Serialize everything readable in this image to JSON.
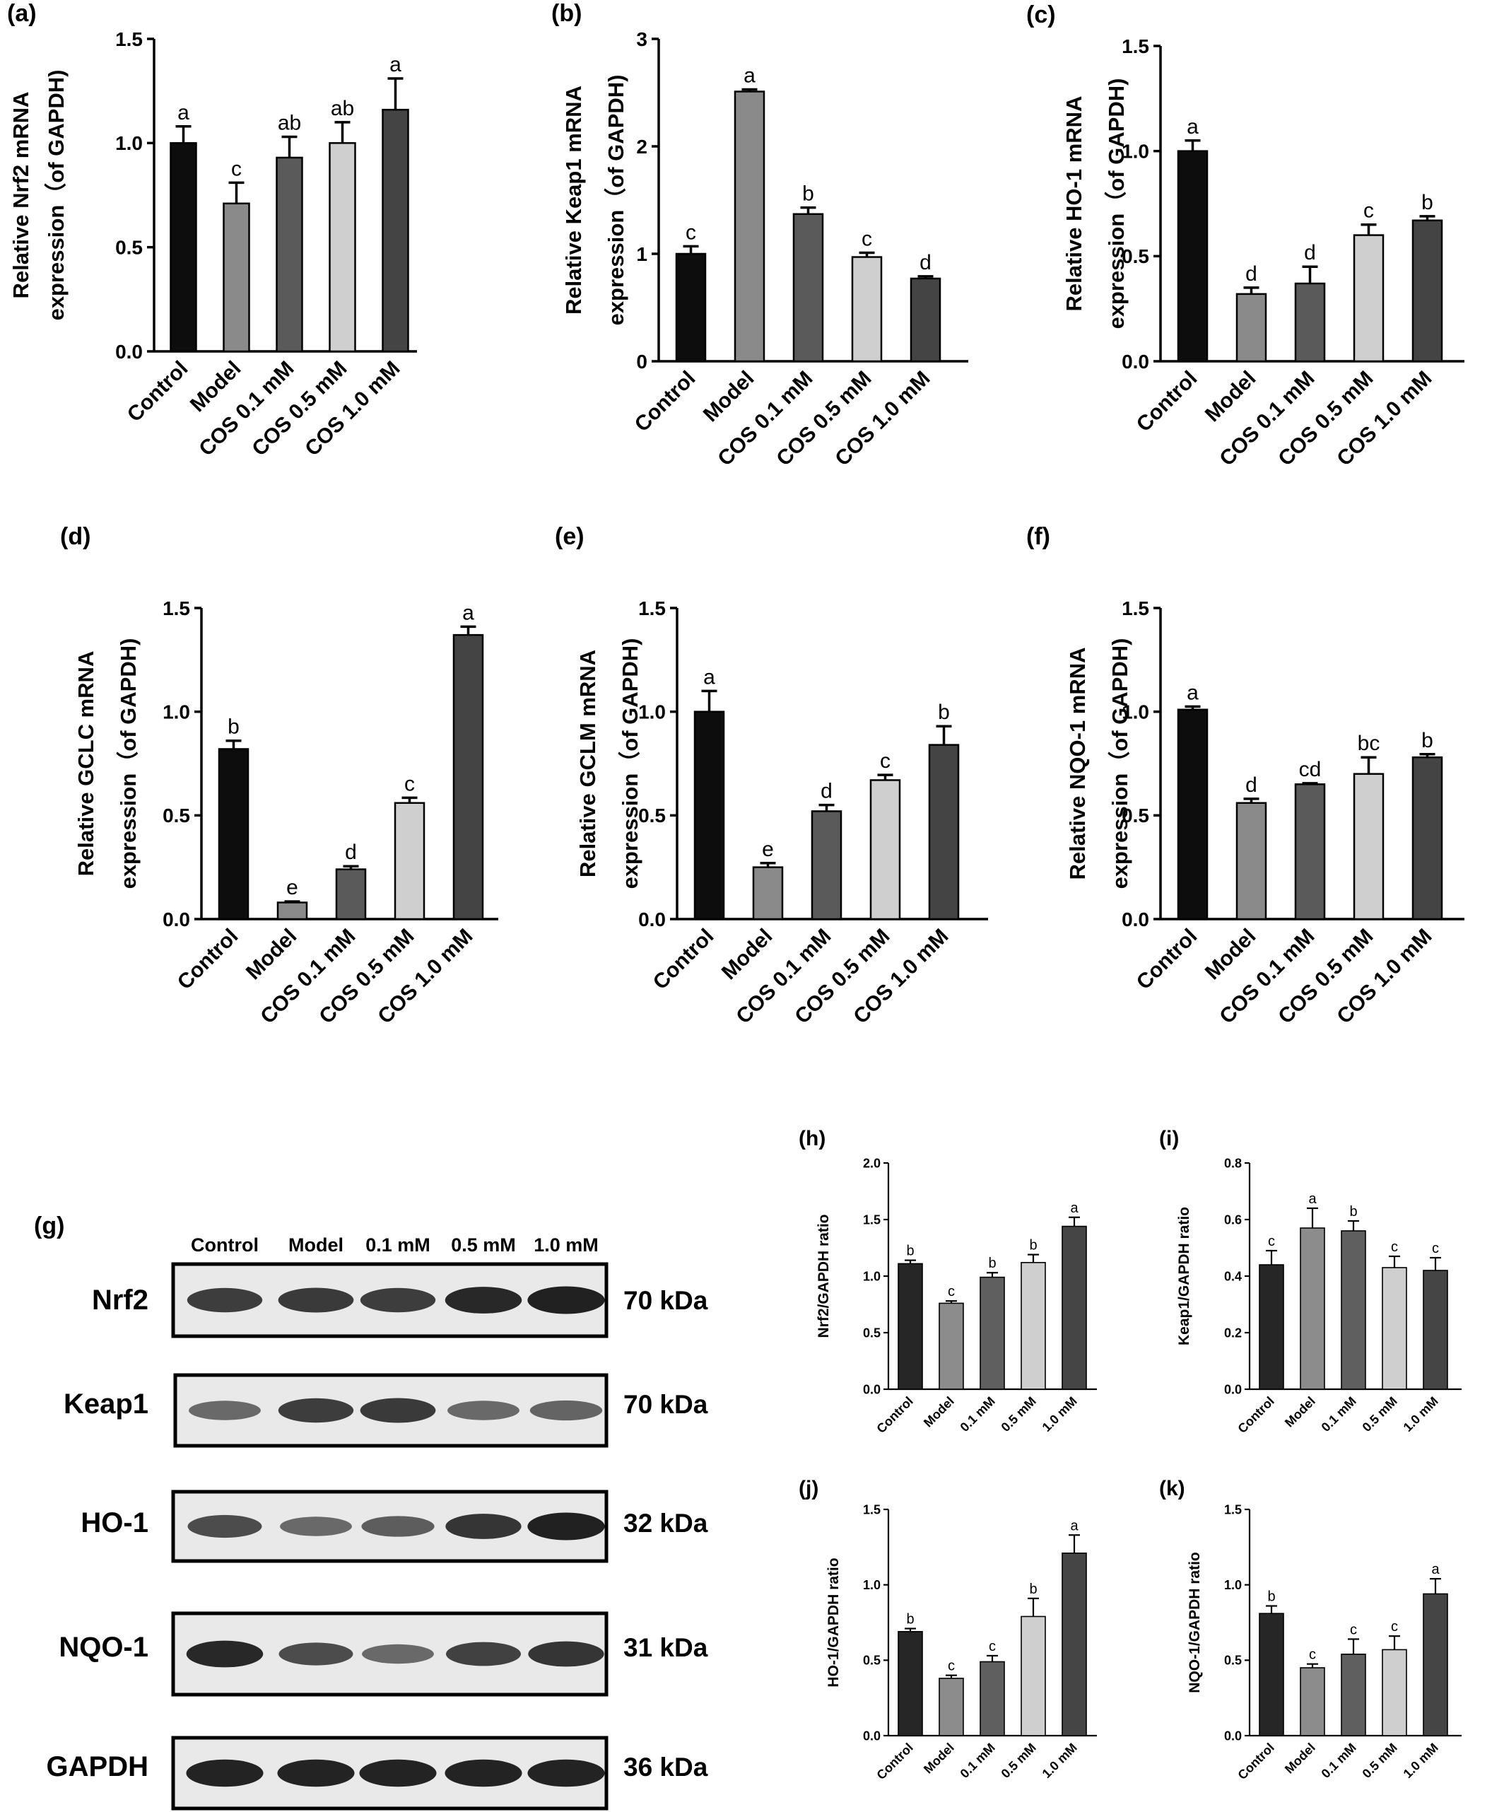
{
  "panels": {
    "g": {
      "label": "(g)",
      "lanes": [
        "Control",
        "Model",
        "0.1 mM",
        "0.5 mM",
        "1.0 mM"
      ],
      "rows": [
        {
          "protein": "Nrf2",
          "size": "70 kDa",
          "intensity": [
            0.8,
            0.82,
            0.8,
            0.92,
            0.96
          ]
        },
        {
          "protein": "Keap1",
          "size": "70 kDa",
          "intensity": [
            0.55,
            0.8,
            0.82,
            0.55,
            0.58
          ]
        },
        {
          "protein": "HO-1",
          "size": "32 kDa",
          "intensity": [
            0.72,
            0.55,
            0.62,
            0.85,
            0.96
          ]
        },
        {
          "protein": "NQO-1",
          "size": "31 kDa",
          "intensity": [
            0.92,
            0.72,
            0.55,
            0.78,
            0.85
          ]
        },
        {
          "protein": "GAPDH",
          "size": "36 kDa",
          "intensity": [
            0.95,
            0.95,
            0.95,
            0.95,
            0.95
          ]
        }
      ]
    }
  },
  "chart_data": [
    {
      "id": "a",
      "panel_label": "(a)",
      "type": "bar",
      "categories": [
        "Control",
        "Model",
        "COS 0.1 mM",
        "COS 0.5 mM",
        "COS 1.0 mM"
      ],
      "values": [
        1.0,
        0.71,
        0.93,
        1.0,
        1.16
      ],
      "errors": [
        0.08,
        0.1,
        0.1,
        0.1,
        0.15
      ],
      "letters": [
        "a",
        "c",
        "ab",
        "ab",
        "a"
      ],
      "ylabel_lines": [
        "Relative Nrf2 mRNA",
        "expression（of GAPDH)"
      ],
      "ylim": [
        0,
        1.5
      ],
      "yticks": [
        "0.0",
        "0.5",
        "1.0",
        "1.5"
      ],
      "ytick_values": [
        0,
        0.5,
        1.0,
        1.5
      ],
      "colors": [
        "#0d0d0d",
        "#8a8a8a",
        "#5a5a5a",
        "#cfcfcf",
        "#444444"
      ]
    },
    {
      "id": "b",
      "panel_label": "(b)",
      "type": "bar",
      "categories": [
        "Control",
        "Model",
        "COS 0.1 mM",
        "COS 0.5 mM",
        "COS 1.0 mM"
      ],
      "values": [
        1.0,
        2.51,
        1.37,
        0.97,
        0.77
      ],
      "errors": [
        0.07,
        0.02,
        0.06,
        0.04,
        0.02
      ],
      "letters": [
        "c",
        "a",
        "b",
        "c",
        "d"
      ],
      "ylabel_lines": [
        "Relative Keap1 mRNA",
        "expression（of GAPDH)"
      ],
      "ylim": [
        0,
        3
      ],
      "yticks": [
        "0",
        "1",
        "2",
        "3"
      ],
      "ytick_values": [
        0,
        1,
        2,
        3
      ],
      "colors": [
        "#0d0d0d",
        "#8a8a8a",
        "#5a5a5a",
        "#cfcfcf",
        "#444444"
      ]
    },
    {
      "id": "c",
      "panel_label": "(c)",
      "type": "bar",
      "categories": [
        "Control",
        "Model",
        "COS 0.1 mM",
        "COS 0.5 mM",
        "COS 1.0 mM"
      ],
      "values": [
        1.0,
        0.32,
        0.37,
        0.6,
        0.67
      ],
      "errors": [
        0.05,
        0.03,
        0.08,
        0.05,
        0.02
      ],
      "letters": [
        "a",
        "d",
        "d",
        "c",
        "b"
      ],
      "ylabel_lines": [
        "Relative HO-1 mRNA",
        "expression（of GAPDH)"
      ],
      "ylim": [
        0,
        1.5
      ],
      "yticks": [
        "0.0",
        "0.5",
        "1.0",
        "1.5"
      ],
      "ytick_values": [
        0,
        0.5,
        1.0,
        1.5
      ],
      "colors": [
        "#0d0d0d",
        "#8a8a8a",
        "#5a5a5a",
        "#cfcfcf",
        "#444444"
      ]
    },
    {
      "id": "d",
      "panel_label": "(d)",
      "type": "bar",
      "categories": [
        "Control",
        "Model",
        "COS 0.1 mM",
        "COS 0.5 mM",
        "COS 1.0 mM"
      ],
      "values": [
        0.82,
        0.08,
        0.24,
        0.56,
        1.37
      ],
      "errors": [
        0.04,
        0.005,
        0.015,
        0.025,
        0.04
      ],
      "letters": [
        "b",
        "e",
        "d",
        "c",
        "a"
      ],
      "ylabel_lines": [
        "Relative GCLC mRNA",
        "expression（of GAPDH)"
      ],
      "ylim": [
        0,
        1.5
      ],
      "yticks": [
        "0.0",
        "0.5",
        "1.0",
        "1.5"
      ],
      "ytick_values": [
        0,
        0.5,
        1.0,
        1.5
      ],
      "colors": [
        "#0d0d0d",
        "#8a8a8a",
        "#5a5a5a",
        "#cfcfcf",
        "#444444"
      ]
    },
    {
      "id": "e",
      "panel_label": "(e)",
      "type": "bar",
      "categories": [
        "Control",
        "Model",
        "COS 0.1 mM",
        "COS 0.5 mM",
        "COS 1.0 mM"
      ],
      "values": [
        1.0,
        0.25,
        0.52,
        0.67,
        0.84
      ],
      "errors": [
        0.1,
        0.02,
        0.03,
        0.025,
        0.09
      ],
      "letters": [
        "a",
        "e",
        "d",
        "c",
        "b"
      ],
      "ylabel_lines": [
        "Relative GCLM mRNA",
        "expression（of GAPDH)"
      ],
      "ylim": [
        0,
        1.5
      ],
      "yticks": [
        "0.0",
        "0.5",
        "1.0",
        "1.5"
      ],
      "ytick_values": [
        0,
        0.5,
        1.0,
        1.5
      ],
      "colors": [
        "#0d0d0d",
        "#8a8a8a",
        "#5a5a5a",
        "#cfcfcf",
        "#444444"
      ]
    },
    {
      "id": "f",
      "panel_label": "(f)",
      "type": "bar",
      "categories": [
        "Control",
        "Model",
        "COS 0.1 mM",
        "COS 0.5 mM",
        "COS 1.0 mM"
      ],
      "values": [
        1.01,
        0.56,
        0.65,
        0.7,
        0.78
      ],
      "errors": [
        0.015,
        0.02,
        0.005,
        0.08,
        0.015
      ],
      "letters": [
        "a",
        "d",
        "cd",
        "bc",
        "b"
      ],
      "ylabel_lines": [
        "Relative NQO-1 mRNA",
        "expression（of GAPDH)"
      ],
      "ylim": [
        0,
        1.5
      ],
      "yticks": [
        "0.0",
        "0.5",
        "1.0",
        "1.5"
      ],
      "ytick_values": [
        0,
        0.5,
        1.0,
        1.5
      ],
      "colors": [
        "#0d0d0d",
        "#8a8a8a",
        "#5a5a5a",
        "#cfcfcf",
        "#444444"
      ]
    },
    {
      "id": "h",
      "panel_label": "(h)",
      "type": "bar",
      "categories": [
        "Control",
        "Model",
        "0.1 mM",
        "0.5 mM",
        "1.0 mM"
      ],
      "values": [
        1.11,
        0.76,
        0.99,
        1.12,
        1.44
      ],
      "errors": [
        0.03,
        0.02,
        0.04,
        0.07,
        0.08
      ],
      "letters": [
        "b",
        "c",
        "b",
        "b",
        "a"
      ],
      "ylabel_lines": [
        "Nrf2/GAPDH ratio"
      ],
      "ylim": [
        0,
        2
      ],
      "yticks": [
        "0.0",
        "0.5",
        "1.0",
        "1.5",
        "2.0"
      ],
      "ytick_values": [
        0,
        0.5,
        1.0,
        1.5,
        2.0
      ],
      "colors": [
        "#262626",
        "#8c8c8c",
        "#5f5f5f",
        "#cfcfcf",
        "#454545"
      ]
    },
    {
      "id": "i",
      "panel_label": "(i)",
      "type": "bar",
      "categories": [
        "Control",
        "Model",
        "0.1 mM",
        "0.5 mM",
        "1.0 mM"
      ],
      "values": [
        0.44,
        0.57,
        0.56,
        0.43,
        0.42
      ],
      "errors": [
        0.05,
        0.07,
        0.035,
        0.04,
        0.045
      ],
      "letters": [
        "c",
        "a",
        "b",
        "c",
        "c"
      ],
      "ylabel_lines": [
        "Keap1/GAPDH ratio"
      ],
      "ylim": [
        0,
        0.8
      ],
      "yticks": [
        "0.0",
        "0.2",
        "0.4",
        "0.6",
        "0.8"
      ],
      "ytick_values": [
        0,
        0.2,
        0.4,
        0.6,
        0.8
      ],
      "colors": [
        "#262626",
        "#8c8c8c",
        "#5f5f5f",
        "#cfcfcf",
        "#454545"
      ]
    },
    {
      "id": "j",
      "panel_label": "(j)",
      "type": "bar",
      "categories": [
        "Control",
        "Model",
        "0.1 mM",
        "0.5 mM",
        "1.0 mM"
      ],
      "values": [
        0.69,
        0.38,
        0.49,
        0.79,
        1.21
      ],
      "errors": [
        0.02,
        0.02,
        0.04,
        0.12,
        0.12
      ],
      "letters": [
        "b",
        "c",
        "c",
        "b",
        "a"
      ],
      "ylabel_lines": [
        "HO-1/GAPDH ratio"
      ],
      "ylim": [
        0,
        1.5
      ],
      "yticks": [
        "0.0",
        "0.5",
        "1.0",
        "1.5"
      ],
      "ytick_values": [
        0,
        0.5,
        1.0,
        1.5
      ],
      "colors": [
        "#262626",
        "#8c8c8c",
        "#5f5f5f",
        "#cfcfcf",
        "#454545"
      ]
    },
    {
      "id": "k",
      "panel_label": "(k)",
      "type": "bar",
      "categories": [
        "Control",
        "Model",
        "0.1 mM",
        "0.5 mM",
        "1.0 mM"
      ],
      "values": [
        0.81,
        0.45,
        0.54,
        0.57,
        0.94
      ],
      "errors": [
        0.05,
        0.025,
        0.1,
        0.09,
        0.1
      ],
      "letters": [
        "b",
        "c",
        "c",
        "c",
        "a"
      ],
      "ylabel_lines": [
        "NQO-1/GAPDH ratio"
      ],
      "ylim": [
        0,
        1.5
      ],
      "yticks": [
        "0.0",
        "0.5",
        "1.0",
        "1.5"
      ],
      "ytick_values": [
        0,
        0.5,
        1.0,
        1.5
      ],
      "colors": [
        "#262626",
        "#8c8c8c",
        "#5f5f5f",
        "#cfcfcf",
        "#454545"
      ]
    }
  ]
}
